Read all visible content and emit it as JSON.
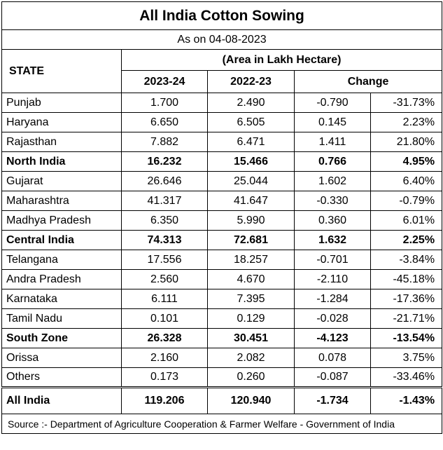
{
  "title": "All India Cotton Sowing",
  "as_on": "As on 04-08-2023",
  "header": {
    "state": "STATE",
    "unit": "(Area in Lakh Hectare)",
    "col_current": "2023-24",
    "col_previous": "2022-23",
    "col_change": "Change"
  },
  "rows": [
    {
      "state": "Punjab",
      "current": "1.700",
      "previous": "2.490",
      "change": "-0.790",
      "pct": "-31.73%",
      "bold": false
    },
    {
      "state": "Haryana",
      "current": "6.650",
      "previous": "6.505",
      "change": "0.145",
      "pct": "2.23%",
      "bold": false
    },
    {
      "state": "Rajasthan",
      "current": "7.882",
      "previous": "6.471",
      "change": "1.411",
      "pct": "21.80%",
      "bold": false
    },
    {
      "state": "North India",
      "current": "16.232",
      "previous": "15.466",
      "change": "0.766",
      "pct": "4.95%",
      "bold": true
    },
    {
      "state": "Gujarat",
      "current": "26.646",
      "previous": "25.044",
      "change": "1.602",
      "pct": "6.40%",
      "bold": false
    },
    {
      "state": "Maharashtra",
      "current": "41.317",
      "previous": "41.647",
      "change": "-0.330",
      "pct": "-0.79%",
      "bold": false
    },
    {
      "state": "Madhya Pradesh",
      "current": "6.350",
      "previous": "5.990",
      "change": "0.360",
      "pct": "6.01%",
      "bold": false
    },
    {
      "state": "Central India",
      "current": "74.313",
      "previous": "72.681",
      "change": "1.632",
      "pct": "2.25%",
      "bold": true
    },
    {
      "state": "Telangana",
      "current": "17.556",
      "previous": "18.257",
      "change": "-0.701",
      "pct": "-3.84%",
      "bold": false
    },
    {
      "state": "Andra Pradesh",
      "current": "2.560",
      "previous": "4.670",
      "change": "-2.110",
      "pct": "-45.18%",
      "bold": false
    },
    {
      "state": "Karnataka",
      "current": "6.111",
      "previous": "7.395",
      "change": "-1.284",
      "pct": "-17.36%",
      "bold": false
    },
    {
      "state": "Tamil Nadu",
      "current": "0.101",
      "previous": "0.129",
      "change": "-0.028",
      "pct": "-21.71%",
      "bold": false
    },
    {
      "state": "South Zone",
      "current": "26.328",
      "previous": "30.451",
      "change": "-4.123",
      "pct": "-13.54%",
      "bold": true
    },
    {
      "state": "Orissa",
      "current": "2.160",
      "previous": "2.082",
      "change": "0.078",
      "pct": "3.75%",
      "bold": false
    },
    {
      "state": "Others",
      "current": "0.173",
      "previous": "0.260",
      "change": "-0.087",
      "pct": "-33.46%",
      "bold": false
    }
  ],
  "total": {
    "state": "All India",
    "current": "119.206",
    "previous": "120.940",
    "change": "-1.734",
    "pct": "-1.43%"
  },
  "source": "Source :- Department of Agriculture Cooperation & Farmer Welfare - Government of India"
}
